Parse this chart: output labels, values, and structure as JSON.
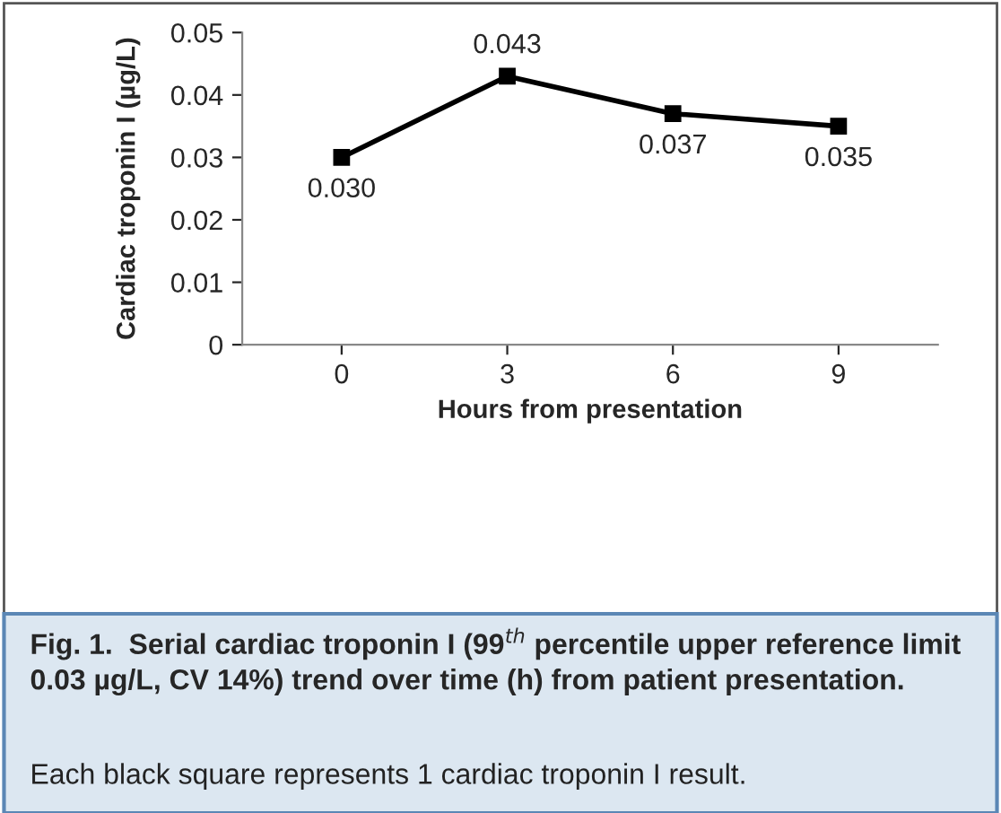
{
  "chart_data": {
    "type": "line",
    "title": "Fig. 1.  Serial cardiac troponin I (99$^{th}$ percentile upper reference limit 0.03 µg/L, CV 14%) trend over time (h) from patient presentation.",
    "annotations": [
      "Each black square represents 1 cardiac troponin I result."
    ],
    "xlabel": "Hours from presentation",
    "ylabel": "Cardiac troponin I (µg/L)",
    "categories": [
      "0",
      "3",
      "6",
      "9"
    ],
    "series": [
      {
        "color": "#000000",
        "values": [
          0.03,
          0.043,
          0.037,
          0.035
        ],
        "value_labels": [
          "0.030",
          "0.043",
          "0.037",
          "0.035"
        ]
      }
    ],
    "ylim": [
      0,
      0.05
    ],
    "yticks": [
      {
        "value": 0,
        "label": "0"
      },
      0.01,
      0.02,
      0.03,
      0.04,
      0.05
    ],
    "grid": false,
    "marker": "square",
    "line_style": "solid"
  }
}
